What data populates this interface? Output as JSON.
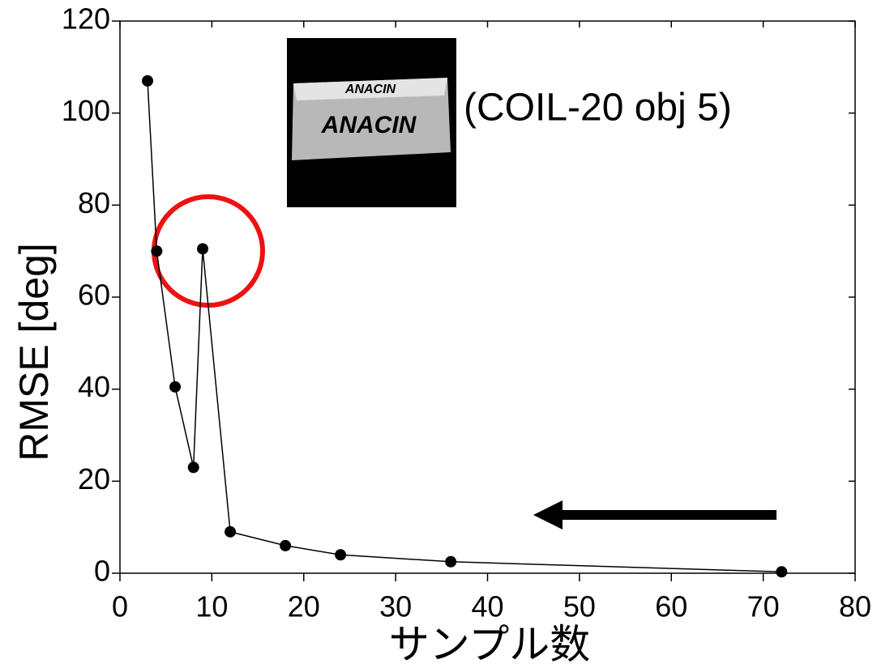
{
  "chart_data": {
    "type": "line",
    "x_label": "サンプル数",
    "y_label": "RMSE [deg]",
    "annotation": "(COIL-20 obj 5)",
    "inset_text": [
      "ANACIN",
      "ANACIN"
    ],
    "x": [
      3,
      4,
      6,
      8,
      9,
      12,
      18,
      24,
      36,
      72
    ],
    "series": [
      {
        "color": "#000000",
        "values": [
          107,
          70,
          40.5,
          23,
          70.5,
          9,
          6,
          4,
          2.5,
          0.3
        ]
      }
    ],
    "xlim": [
      0,
      80
    ],
    "xticks": [
      0,
      10,
      20,
      30,
      40,
      50,
      60,
      70,
      80
    ],
    "ylim": [
      0,
      120
    ],
    "yticks": [
      0,
      20,
      40,
      60,
      80,
      100,
      120
    ]
  }
}
